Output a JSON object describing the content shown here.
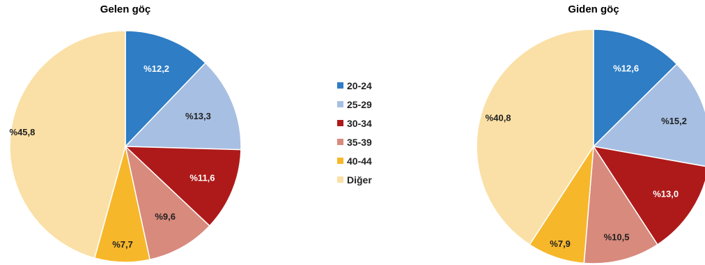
{
  "chart_data": [
    {
      "type": "pie",
      "title": "Gelen göç",
      "categories": [
        "20-24",
        "25-29",
        "30-34",
        "35-39",
        "40-44",
        "Diğer"
      ],
      "values": [
        12.2,
        13.3,
        11.6,
        9.6,
        7.7,
        45.8
      ],
      "labels": [
        "%12,2",
        "%13,3",
        "%11,6",
        "%9,6",
        "%7,7",
        "%45,8"
      ]
    },
    {
      "type": "pie",
      "title": "Giden göç",
      "categories": [
        "20-24",
        "25-29",
        "30-34",
        "35-39",
        "40-44",
        "Diğer"
      ],
      "values": [
        12.6,
        15.2,
        13.0,
        10.5,
        7.9,
        40.8
      ],
      "labels": [
        "%12,6",
        "%15,2",
        "%13,0",
        "%10,5",
        "%7,9",
        "%40,8"
      ]
    }
  ],
  "legend": {
    "placement": "center",
    "items": [
      {
        "label": "20-24",
        "color": "#2E7DC5"
      },
      {
        "label": "25-29",
        "color": "#A7BFE2"
      },
      {
        "label": "30-34",
        "color": "#AE1A1A"
      },
      {
        "label": "35-39",
        "color": "#D88A7C"
      },
      {
        "label": "40-44",
        "color": "#F7B72B"
      },
      {
        "label": "Diğer",
        "color": "#FAE0A6"
      }
    ]
  },
  "colors": [
    "#2E7DC5",
    "#A7BFE2",
    "#AE1A1A",
    "#D88A7C",
    "#F7B72B",
    "#FAE0A6"
  ],
  "label_colors": [
    "#ffffff",
    "#1f1f1f",
    "#ffffff",
    "#1f1f1f",
    "#1f1f1f",
    "#1f1f1f"
  ]
}
